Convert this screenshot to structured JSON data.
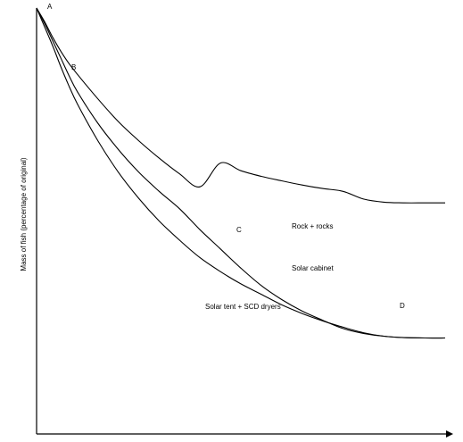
{
  "chart_data": {
    "type": "line",
    "title": "",
    "xlabel": "",
    "ylabel": "Mass of fish (percentage of original)",
    "grid": false,
    "xlim": [
      0,
      100
    ],
    "ylim": [
      0,
      100
    ],
    "point_labels": [
      "A",
      "B",
      "C",
      "D"
    ],
    "series": [
      {
        "name": "Rock + rocks",
        "x": [
          0,
          2,
          4,
          6,
          8,
          10,
          15,
          20,
          25,
          30,
          35,
          40,
          45,
          50,
          55,
          60,
          65,
          70,
          75,
          80,
          85,
          90,
          95,
          100
        ],
        "y": [
          100,
          96,
          91.5,
          87.5,
          84,
          81,
          74,
          67.5,
          62,
          57,
          52.5,
          48.8,
          55.6,
          53.4,
          51.8,
          50.5,
          49.3,
          48.3,
          47.5,
          45.3,
          44.4,
          44.2,
          44.2,
          44.2
        ]
      },
      {
        "name": "Solar cabinet",
        "x": [
          0,
          2,
          4,
          6,
          8,
          10,
          15,
          20,
          25,
          30,
          35,
          40,
          45,
          50,
          55,
          60,
          65,
          70,
          75,
          80,
          85,
          90,
          95,
          100
        ],
        "y": [
          100,
          95.5,
          90.5,
          85.5,
          80.5,
          76,
          67,
          59.5,
          53,
          47.5,
          42.5,
          36.5,
          31,
          25.5,
          20.5,
          16.5,
          13.2,
          10.6,
          8.2,
          6.8,
          6,
          5.6,
          5.5,
          5.5
        ]
      },
      {
        "name": "Solar tent + SCD dryers",
        "x": [
          0,
          2,
          4,
          6,
          8,
          10,
          15,
          20,
          25,
          30,
          35,
          40,
          45,
          50,
          55,
          60,
          65,
          70,
          75,
          80,
          85,
          90,
          95,
          100
        ],
        "y": [
          100,
          94.5,
          89,
          83,
          77.5,
          72.5,
          62,
          53,
          45.5,
          39,
          33.5,
          28.5,
          24.5,
          21,
          18,
          15,
          12.5,
          10.4,
          8.6,
          7,
          6,
          5.6,
          5.5,
          5.5
        ]
      }
    ]
  }
}
